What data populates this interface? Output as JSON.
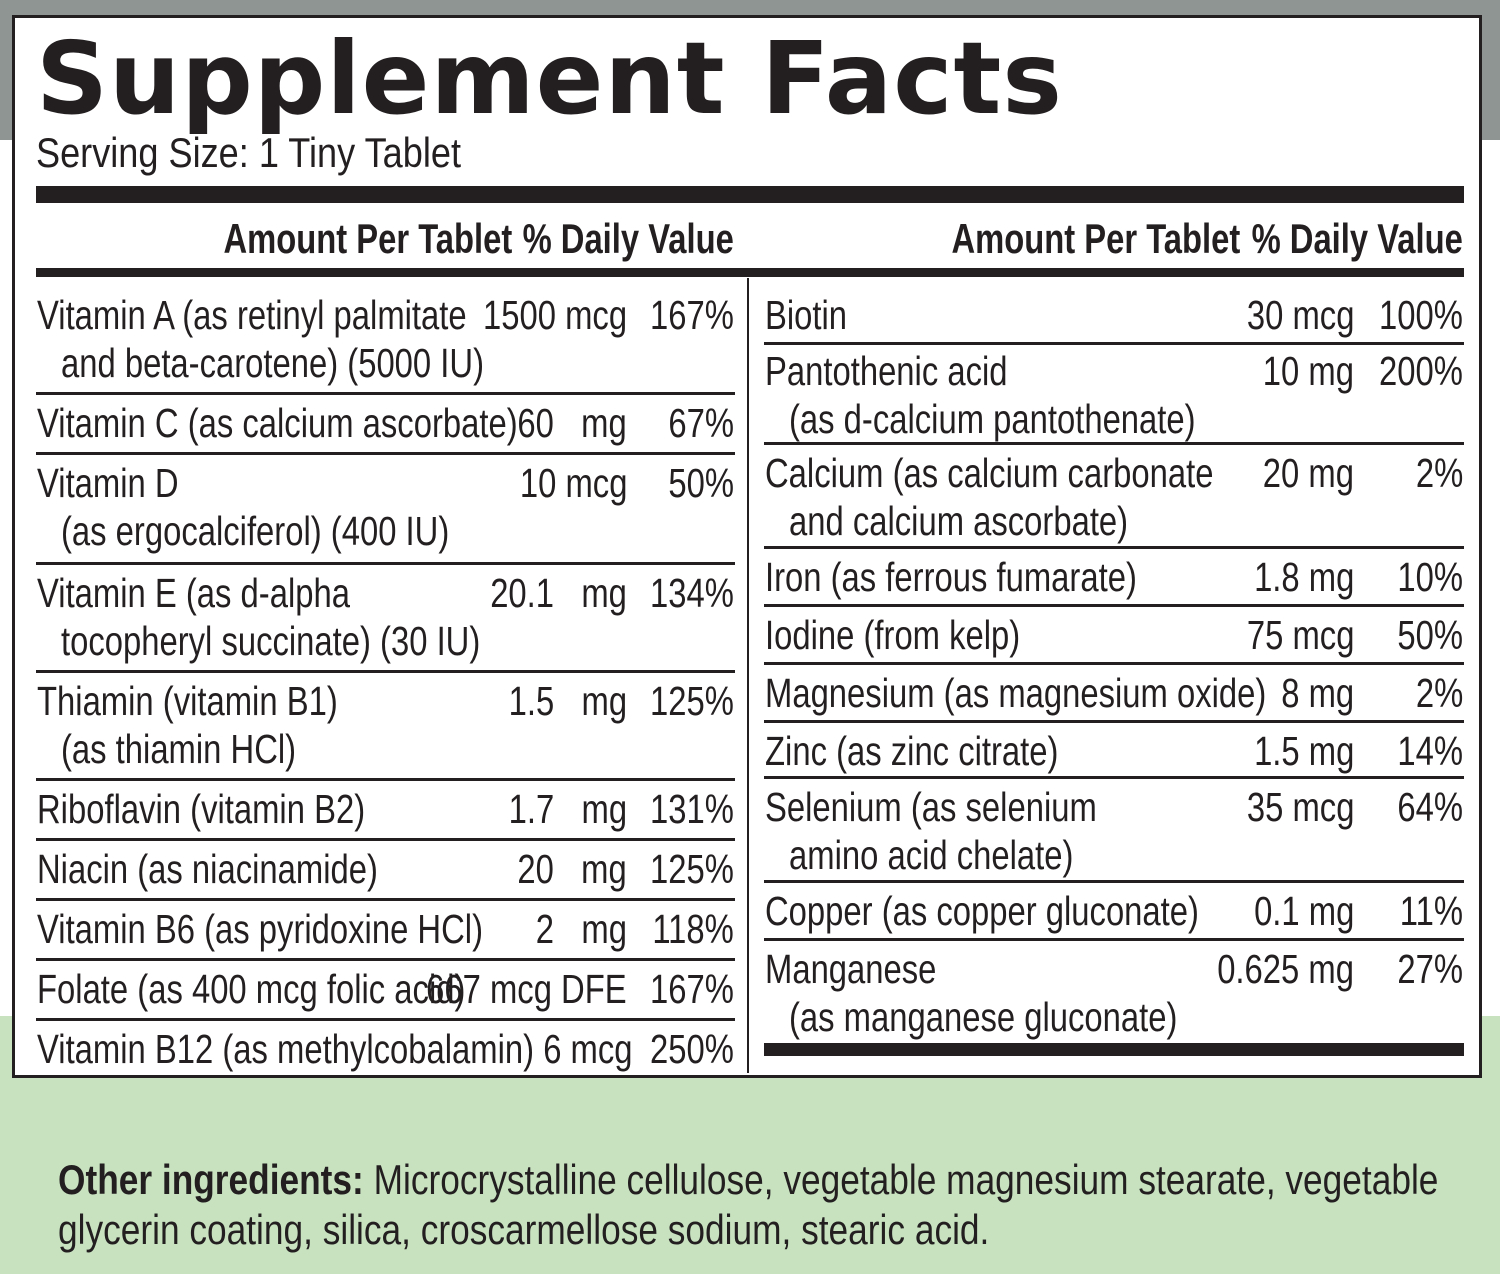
{
  "label": {
    "title": "Supplement Facts",
    "serving_size": "Serving Size: 1 Tiny Tablet",
    "header_amount": "Amount Per Tablet",
    "header_dv": "% Daily Value"
  },
  "left_rows": [
    {
      "name1": "Vitamin A (as retinyl palmitate",
      "name2": "and beta-carotene) (5000 IU)",
      "amount": "1500 mcg",
      "dv": "167%"
    },
    {
      "name1": "Vitamin C (as calcium ascorbate)",
      "name2": "",
      "amount": "60   mg",
      "dv": "67%"
    },
    {
      "name1": "Vitamin D",
      "name2": "(as ergocalciferol) (400 IU)",
      "amount": "10 mcg",
      "dv": "50%"
    },
    {
      "name1": "Vitamin E (as d-alpha",
      "name2": "tocopheryl succinate) (30 IU)",
      "amount": "20.1   mg",
      "dv": "134%"
    },
    {
      "name1": "Thiamin (vitamin B1)",
      "name2": "(as thiamin HCl)",
      "amount": "1.5   mg",
      "dv": "125%"
    },
    {
      "name1": "Riboflavin (vitamin B2)",
      "name2": "",
      "amount": "1.7   mg",
      "dv": "131%"
    },
    {
      "name1": "Niacin (as niacinamide)",
      "name2": "",
      "amount": "20   mg",
      "dv": "125%"
    },
    {
      "name1": "Vitamin B6 (as pyridoxine HCl)",
      "name2": "",
      "amount": "2   mg",
      "dv": "118%"
    },
    {
      "name1": "Folate (as 400 mcg folic acid)",
      "name2": "",
      "amount": "667 mcg DFE",
      "dv": "167%"
    },
    {
      "name1": "Vitamin B12 (as methylcobalamin) 6 mcg",
      "name2": "",
      "amount": "",
      "dv": "250%"
    }
  ],
  "right_rows": [
    {
      "name1": "Biotin",
      "name2": "",
      "amount": "30 mcg",
      "dv": "100%"
    },
    {
      "name1": "Pantothenic acid",
      "name2": "(as d-calcium pantothenate)",
      "amount": "10 mg",
      "dv": "200%"
    },
    {
      "name1": "Calcium (as calcium carbonate",
      "name2": "and calcium ascorbate)",
      "amount": "20 mg",
      "dv": "2%"
    },
    {
      "name1": "Iron (as ferrous fumarate)",
      "name2": "",
      "amount": "1.8 mg",
      "dv": "10%"
    },
    {
      "name1": "Iodine (from kelp)",
      "name2": "",
      "amount": "75 mcg",
      "dv": "50%"
    },
    {
      "name1": "Magnesium (as magnesium oxide)",
      "name2": "",
      "amount": "8 mg",
      "dv": "2%"
    },
    {
      "name1": "Zinc (as zinc citrate)",
      "name2": "",
      "amount": "1.5 mg",
      "dv": "14%"
    },
    {
      "name1": "Selenium (as selenium",
      "name2": "amino acid chelate)",
      "amount": "35 mcg",
      "dv": "64%"
    },
    {
      "name1": "Copper (as copper gluconate)",
      "name2": "",
      "amount": "0.1 mg",
      "dv": "11%"
    },
    {
      "name1": "Manganese",
      "name2": "(as manganese gluconate)",
      "amount": "0.625 mg",
      "dv": "27%"
    }
  ],
  "other_ingredients": {
    "label": "Other ingredients:",
    "text1": " Microcrystalline cellulose, vegetable magnesium stearate, vegetable",
    "text2": "glycerin coating, silica, croscarmellose sodium, stearic acid."
  },
  "colors": {
    "ink": "#231f20",
    "top_band": "#8f9593",
    "bottom_band": "#c8e2c0"
  }
}
